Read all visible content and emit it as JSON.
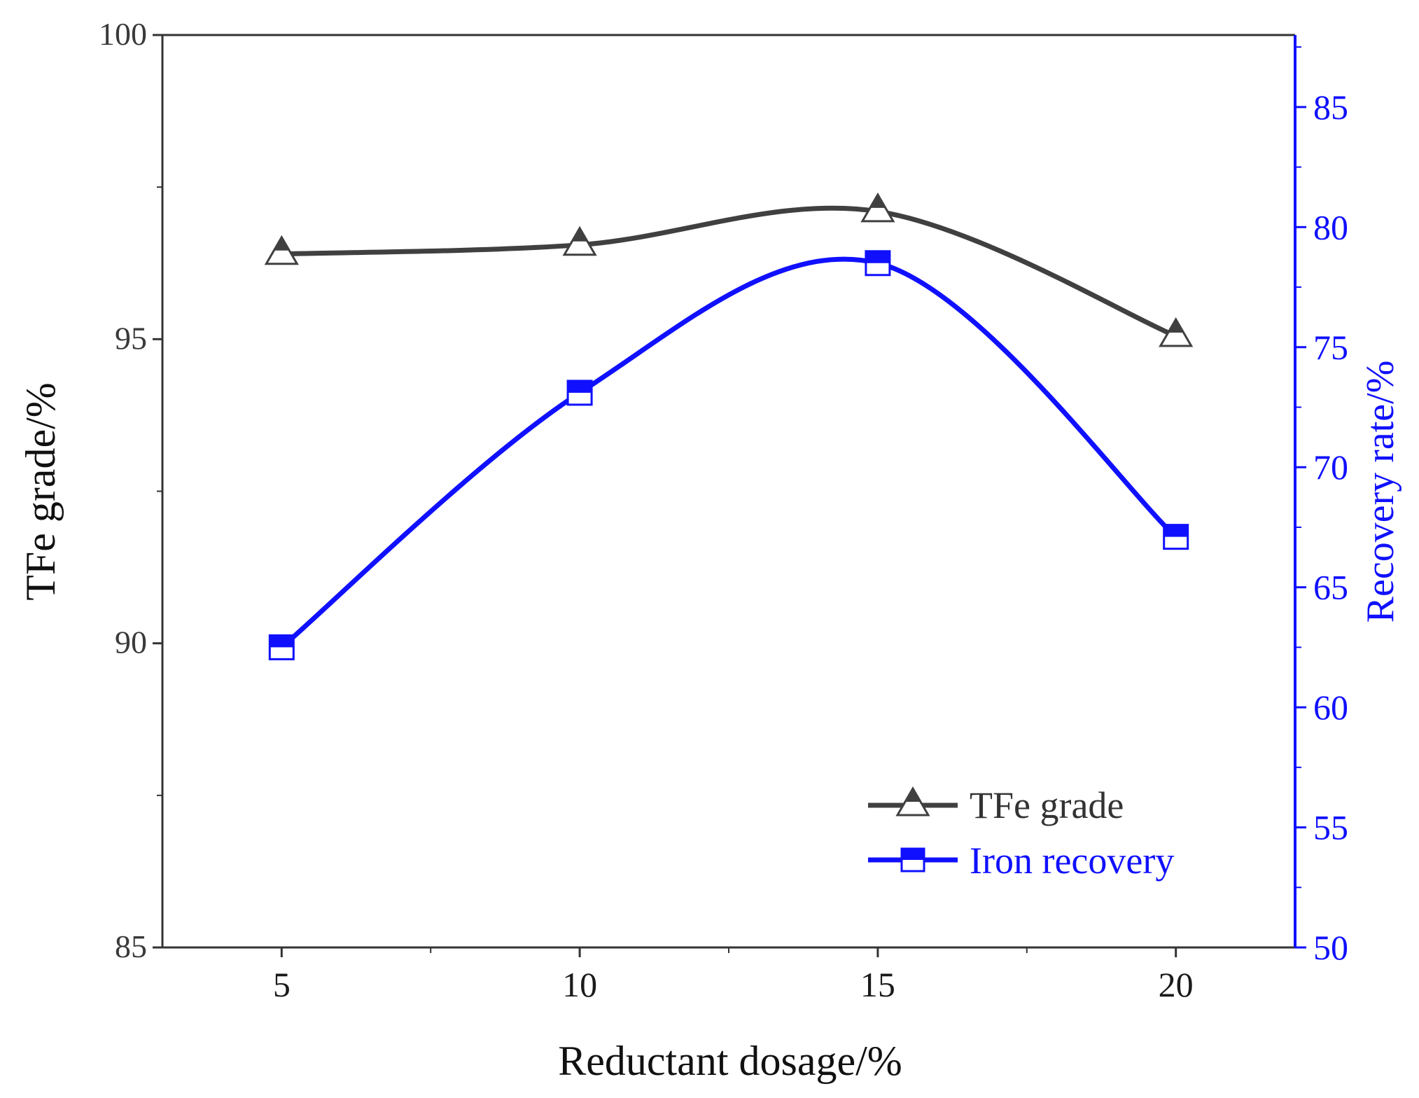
{
  "chart_data": {
    "type": "line",
    "xlabel": "Reductant dosage/%",
    "ylabel": "TFe grade/%",
    "y2label": "Recovery rate/%",
    "x": [
      5,
      10,
      15,
      20
    ],
    "x_ticks": [
      "5",
      "10",
      "15",
      "20"
    ],
    "xlim": [
      3,
      22
    ],
    "ylim": [
      85,
      100
    ],
    "y_ticks": [
      "85",
      "90",
      "95",
      "100"
    ],
    "y2lim": [
      50,
      88
    ],
    "y2_ticks": [
      "50",
      "55",
      "60",
      "65",
      "70",
      "75",
      "80",
      "85"
    ],
    "series": [
      {
        "name": "TFe grade",
        "axis": "left",
        "marker": "triangle",
        "color": "#404040",
        "values": [
          96.4,
          96.55,
          97.1,
          95.05
        ]
      },
      {
        "name": "Iron recovery",
        "axis": "right",
        "marker": "square-half",
        "color": "#1010ff",
        "values": [
          62.5,
          73.1,
          78.5,
          67.1
        ]
      }
    ],
    "legend_position": "bottom-right"
  }
}
